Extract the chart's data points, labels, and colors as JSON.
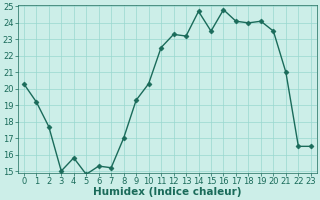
{
  "x": [
    0,
    1,
    2,
    3,
    4,
    5,
    6,
    7,
    8,
    9,
    10,
    11,
    12,
    13,
    14,
    15,
    16,
    17,
    18,
    19,
    20,
    21,
    22,
    23
  ],
  "y": [
    20.3,
    19.2,
    17.7,
    15.0,
    15.8,
    14.8,
    15.3,
    15.2,
    17.0,
    19.3,
    20.3,
    22.5,
    23.3,
    23.2,
    24.7,
    23.5,
    24.8,
    24.1,
    24.0,
    24.1,
    23.5,
    21.0,
    16.5,
    16.5
  ],
  "line_color": "#1a6b5a",
  "marker": "D",
  "marker_size": 2.5,
  "bg_color": "#cceee8",
  "grid_color": "#99d8cf",
  "xlabel": "Humidex (Indice chaleur)",
  "ylim": [
    15,
    25
  ],
  "xlim": [
    -0.5,
    23.5
  ],
  "yticks": [
    15,
    16,
    17,
    18,
    19,
    20,
    21,
    22,
    23,
    24,
    25
  ],
  "xticks": [
    0,
    1,
    2,
    3,
    4,
    5,
    6,
    7,
    8,
    9,
    10,
    11,
    12,
    13,
    14,
    15,
    16,
    17,
    18,
    19,
    20,
    21,
    22,
    23
  ],
  "xlabel_fontsize": 7.5,
  "tick_fontsize": 6,
  "line_width": 1.0
}
